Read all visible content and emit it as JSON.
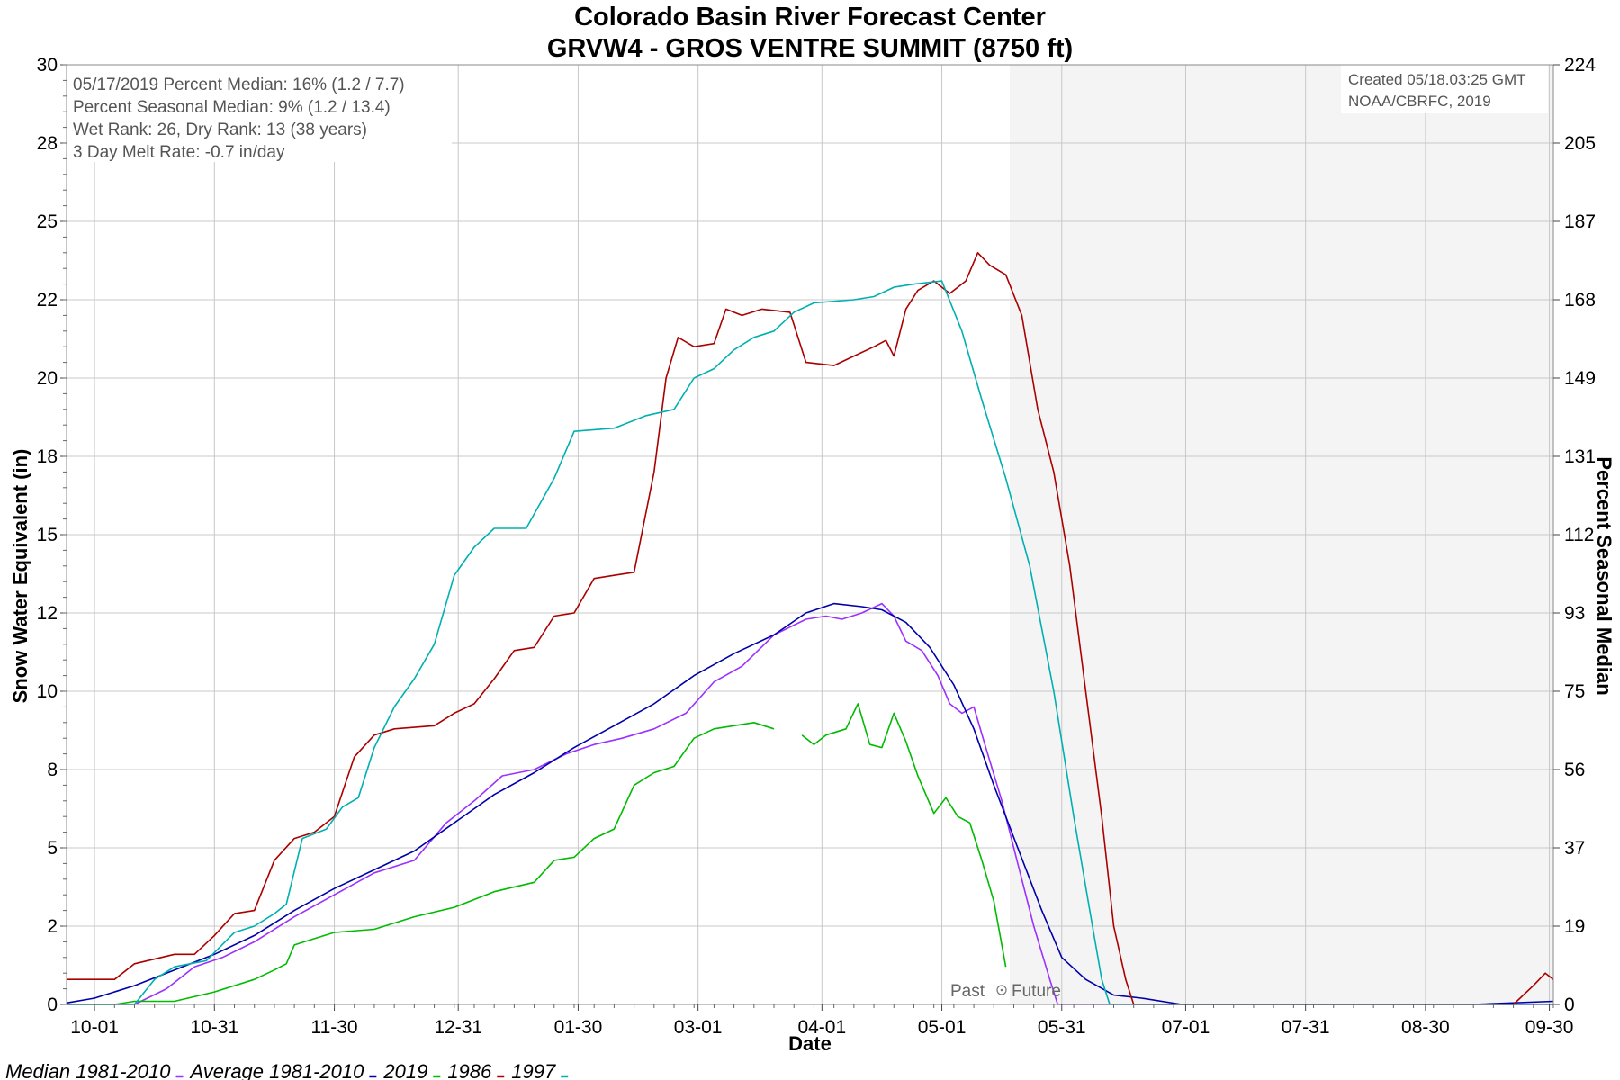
{
  "header": {
    "title": "Colorado Basin River Forecast Center",
    "subtitle": "GRVW4 - GROS VENTRE SUMMIT (8750 ft)"
  },
  "info_box": {
    "lines": [
      "05/17/2019 Percent Median: 16% (1.2 / 7.7)",
      "Percent Seasonal Median: 9% (1.2 / 13.4)",
      "Wet Rank: 26, Dry Rank: 13  (38 years)",
      "3 Day Melt Rate: -0.7 in/day"
    ]
  },
  "credit_box": {
    "lines": [
      "Created 05/18.03:25 GMT",
      "NOAA/CBRFC, 2019"
    ]
  },
  "past_future": {
    "past": "Past",
    "future": "Future"
  },
  "colors": {
    "median": "#9b30ff",
    "average": "#0000aa",
    "y2019": "#00bb00",
    "y1986": "#aa0000",
    "y1997": "#00b0b0",
    "future_shade": "#f4f4f4",
    "grid": "#c8c8c8"
  },
  "chart_data": {
    "type": "line",
    "xlabel": "Date",
    "ylabel": "Snow Water Equivalent (in)",
    "y2label": "Percent Seasonal Median",
    "x_ticks": [
      "10-01",
      "10-31",
      "11-30",
      "12-31",
      "01-30",
      "03-01",
      "04-01",
      "05-01",
      "05-31",
      "07-01",
      "07-31",
      "08-30",
      "09-30"
    ],
    "x_tick_days": [
      0,
      30,
      60,
      91,
      121,
      151,
      182,
      212,
      242,
      273,
      303,
      333,
      364
    ],
    "x_range_days": [
      -7,
      365
    ],
    "ylim": [
      0,
      30
    ],
    "y_ticks": [
      {
        "value": 0,
        "label": "0"
      },
      {
        "value": 2.5,
        "label": "2"
      },
      {
        "value": 5,
        "label": "5"
      },
      {
        "value": 7.5,
        "label": "8"
      },
      {
        "value": 10,
        "label": "10"
      },
      {
        "value": 12.5,
        "label": "12"
      },
      {
        "value": 15,
        "label": "15"
      },
      {
        "value": 17.5,
        "label": "18"
      },
      {
        "value": 20,
        "label": "20"
      },
      {
        "value": 22.5,
        "label": "22"
      },
      {
        "value": 25,
        "label": "25"
      },
      {
        "value": 27.5,
        "label": "28"
      },
      {
        "value": 30,
        "label": "30"
      }
    ],
    "y2_ticks": [
      "0",
      "19",
      "37",
      "56",
      "75",
      "93",
      "112",
      "131",
      "149",
      "168",
      "187",
      "205",
      "224"
    ],
    "future_start_day": 229,
    "grid": true,
    "legend_position": "bottom-left",
    "series": [
      {
        "name": "Median 1981-2010",
        "color_key": "median",
        "points": [
          [
            -7,
            0
          ],
          [
            10,
            0
          ],
          [
            18,
            0.5
          ],
          [
            25,
            1.2
          ],
          [
            32,
            1.5
          ],
          [
            40,
            2
          ],
          [
            50,
            2.8
          ],
          [
            60,
            3.5
          ],
          [
            70,
            4.2
          ],
          [
            80,
            4.6
          ],
          [
            88,
            5.8
          ],
          [
            95,
            6.5
          ],
          [
            102,
            7.3
          ],
          [
            110,
            7.5
          ],
          [
            118,
            8
          ],
          [
            125,
            8.3
          ],
          [
            132,
            8.5
          ],
          [
            140,
            8.8
          ],
          [
            148,
            9.3
          ],
          [
            155,
            10.3
          ],
          [
            162,
            10.8
          ],
          [
            170,
            11.8
          ],
          [
            178,
            12.3
          ],
          [
            183,
            12.4
          ],
          [
            187,
            12.3
          ],
          [
            192,
            12.5
          ],
          [
            197,
            12.8
          ],
          [
            200,
            12.4
          ],
          [
            203,
            11.6
          ],
          [
            207,
            11.3
          ],
          [
            211,
            10.5
          ],
          [
            214,
            9.6
          ],
          [
            217,
            9.3
          ],
          [
            220,
            9.5
          ],
          [
            223,
            8.2
          ],
          [
            227,
            6.5
          ],
          [
            231,
            4.5
          ],
          [
            235,
            2.5
          ],
          [
            239,
            0.8
          ],
          [
            241,
            0
          ],
          [
            365,
            0
          ]
        ]
      },
      {
        "name": "Average 1981-2010",
        "color_key": "average",
        "points": [
          [
            -7,
            0.05
          ],
          [
            0,
            0.2
          ],
          [
            10,
            0.6
          ],
          [
            20,
            1.1
          ],
          [
            30,
            1.6
          ],
          [
            40,
            2.2
          ],
          [
            50,
            3
          ],
          [
            60,
            3.7
          ],
          [
            70,
            4.3
          ],
          [
            80,
            4.9
          ],
          [
            90,
            5.8
          ],
          [
            100,
            6.7
          ],
          [
            110,
            7.4
          ],
          [
            120,
            8.2
          ],
          [
            130,
            8.9
          ],
          [
            140,
            9.6
          ],
          [
            150,
            10.5
          ],
          [
            160,
            11.2
          ],
          [
            170,
            11.8
          ],
          [
            178,
            12.5
          ],
          [
            185,
            12.8
          ],
          [
            192,
            12.7
          ],
          [
            197,
            12.6
          ],
          [
            203,
            12.2
          ],
          [
            209,
            11.4
          ],
          [
            215,
            10.2
          ],
          [
            220,
            8.8
          ],
          [
            225,
            7
          ],
          [
            231,
            5
          ],
          [
            237,
            3
          ],
          [
            242,
            1.5
          ],
          [
            248,
            0.8
          ],
          [
            255,
            0.3
          ],
          [
            262,
            0.2
          ],
          [
            272,
            0
          ],
          [
            345,
            0
          ],
          [
            365,
            0.1
          ]
        ]
      },
      {
        "name": "2019",
        "color_key": "y2019",
        "points": [
          [
            -7,
            0
          ],
          [
            5,
            0
          ],
          [
            10,
            0.1
          ],
          [
            20,
            0.1
          ],
          [
            30,
            0.4
          ],
          [
            40,
            0.8
          ],
          [
            45,
            1.1
          ],
          [
            48,
            1.3
          ],
          [
            50,
            1.9
          ],
          [
            55,
            2.1
          ],
          [
            60,
            2.3
          ],
          [
            70,
            2.4
          ],
          [
            80,
            2.8
          ],
          [
            90,
            3.1
          ],
          [
            100,
            3.6
          ],
          [
            110,
            3.9
          ],
          [
            115,
            4.6
          ],
          [
            120,
            4.7
          ],
          [
            125,
            5.3
          ],
          [
            130,
            5.6
          ],
          [
            135,
            7
          ],
          [
            140,
            7.4
          ],
          [
            145,
            7.6
          ],
          [
            150,
            8.5
          ],
          [
            155,
            8.8
          ],
          [
            160,
            8.9
          ],
          [
            165,
            9
          ],
          [
            170,
            8.8
          ],
          [
            176,
            null
          ],
          [
            177,
            8.6
          ],
          [
            180,
            8.3
          ],
          [
            183,
            8.6
          ],
          [
            188,
            8.8
          ],
          [
            191,
            9.6
          ],
          [
            194,
            8.3
          ],
          [
            197,
            8.2
          ],
          [
            200,
            9.3
          ],
          [
            203,
            8.4
          ],
          [
            206,
            7.3
          ],
          [
            210,
            6.1
          ],
          [
            213,
            6.6
          ],
          [
            216,
            6
          ],
          [
            219,
            5.8
          ],
          [
            222,
            4.6
          ],
          [
            225,
            3.3
          ],
          [
            228,
            1.2
          ]
        ]
      },
      {
        "name": "1986",
        "color_key": "y1986",
        "points": [
          [
            -7,
            0.8
          ],
          [
            5,
            0.8
          ],
          [
            10,
            1.3
          ],
          [
            20,
            1.6
          ],
          [
            25,
            1.6
          ],
          [
            30,
            2.2
          ],
          [
            35,
            2.9
          ],
          [
            40,
            3
          ],
          [
            45,
            4.6
          ],
          [
            50,
            5.3
          ],
          [
            55,
            5.5
          ],
          [
            60,
            6
          ],
          [
            65,
            7.9
          ],
          [
            70,
            8.6
          ],
          [
            75,
            8.8
          ],
          [
            85,
            8.9
          ],
          [
            90,
            9.3
          ],
          [
            95,
            9.6
          ],
          [
            100,
            10.4
          ],
          [
            105,
            11.3
          ],
          [
            110,
            11.4
          ],
          [
            115,
            12.4
          ],
          [
            120,
            12.5
          ],
          [
            125,
            13.6
          ],
          [
            130,
            13.7
          ],
          [
            135,
            13.8
          ],
          [
            140,
            17
          ],
          [
            143,
            20
          ],
          [
            146,
            21.3
          ],
          [
            150,
            21
          ],
          [
            155,
            21.1
          ],
          [
            158,
            22.2
          ],
          [
            162,
            22
          ],
          [
            167,
            22.2
          ],
          [
            174,
            22.1
          ],
          [
            178,
            20.5
          ],
          [
            185,
            20.4
          ],
          [
            190,
            20.7
          ],
          [
            195,
            21
          ],
          [
            198,
            21.2
          ],
          [
            200,
            20.7
          ],
          [
            203,
            22.2
          ],
          [
            206,
            22.8
          ],
          [
            210,
            23.1
          ],
          [
            214,
            22.7
          ],
          [
            218,
            23.1
          ],
          [
            221,
            24
          ],
          [
            224,
            23.6
          ],
          [
            228,
            23.3
          ],
          [
            232,
            22
          ],
          [
            236,
            19
          ],
          [
            240,
            17
          ],
          [
            244,
            14
          ],
          [
            248,
            10
          ],
          [
            252,
            6
          ],
          [
            255,
            2.5
          ],
          [
            258,
            0.8
          ],
          [
            260,
            0
          ],
          [
            355,
            0
          ],
          [
            360,
            0.6
          ],
          [
            363,
            1
          ],
          [
            365,
            0.8
          ]
        ]
      },
      {
        "name": "1997",
        "color_key": "y1997",
        "points": [
          [
            -7,
            0
          ],
          [
            10,
            0
          ],
          [
            15,
            0.8
          ],
          [
            20,
            1.2
          ],
          [
            28,
            1.4
          ],
          [
            35,
            2.3
          ],
          [
            40,
            2.5
          ],
          [
            45,
            2.9
          ],
          [
            48,
            3.2
          ],
          [
            52,
            5.3
          ],
          [
            58,
            5.6
          ],
          [
            62,
            6.3
          ],
          [
            66,
            6.6
          ],
          [
            70,
            8.2
          ],
          [
            75,
            9.5
          ],
          [
            80,
            10.4
          ],
          [
            85,
            11.5
          ],
          [
            90,
            13.7
          ],
          [
            95,
            14.6
          ],
          [
            100,
            15.2
          ],
          [
            108,
            15.2
          ],
          [
            115,
            16.8
          ],
          [
            120,
            18.3
          ],
          [
            130,
            18.4
          ],
          [
            138,
            18.8
          ],
          [
            145,
            19
          ],
          [
            150,
            20
          ],
          [
            155,
            20.3
          ],
          [
            160,
            20.9
          ],
          [
            165,
            21.3
          ],
          [
            170,
            21.5
          ],
          [
            175,
            22.1
          ],
          [
            180,
            22.4
          ],
          [
            190,
            22.5
          ],
          [
            195,
            22.6
          ],
          [
            200,
            22.9
          ],
          [
            205,
            23
          ],
          [
            212,
            23.1
          ],
          [
            217,
            21.5
          ],
          [
            222,
            19.3
          ],
          [
            228,
            16.8
          ],
          [
            234,
            14
          ],
          [
            240,
            10
          ],
          [
            245,
            6
          ],
          [
            249,
            3
          ],
          [
            252,
            0.8
          ],
          [
            254,
            0
          ],
          [
            365,
            0
          ]
        ]
      }
    ]
  }
}
